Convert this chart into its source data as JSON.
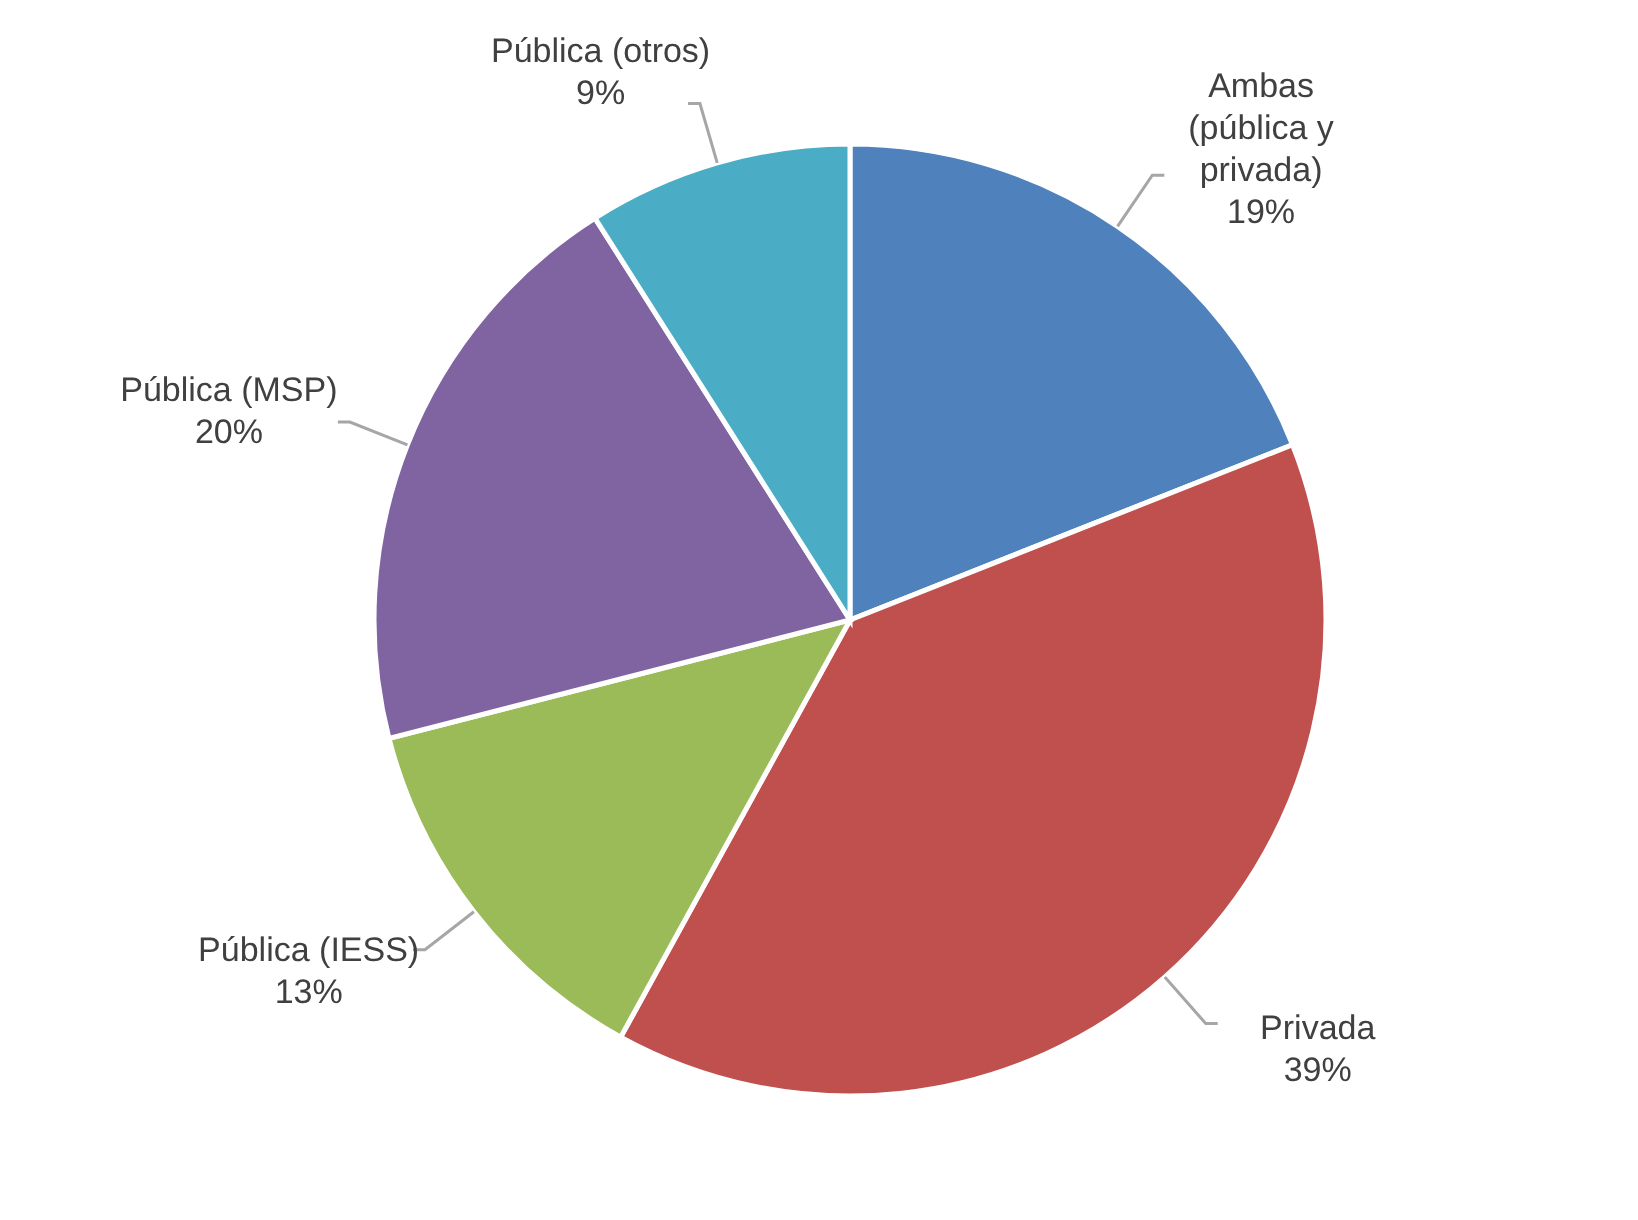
{
  "chart_data": {
    "type": "pie",
    "categories": [
      "Ambas (pública y privada)",
      "Privada",
      "Pública (IESS)",
      "Pública (MSP)",
      "Pública (otros)"
    ],
    "values": [
      19,
      39,
      13,
      20,
      9
    ],
    "colors": [
      "#4f81bd",
      "#c0504d",
      "#9bbb59",
      "#8064a2",
      "#4bacc6"
    ],
    "value_labels": [
      "19%",
      "39%",
      "13%",
      "20%",
      "9%"
    ],
    "legend": false
  }
}
